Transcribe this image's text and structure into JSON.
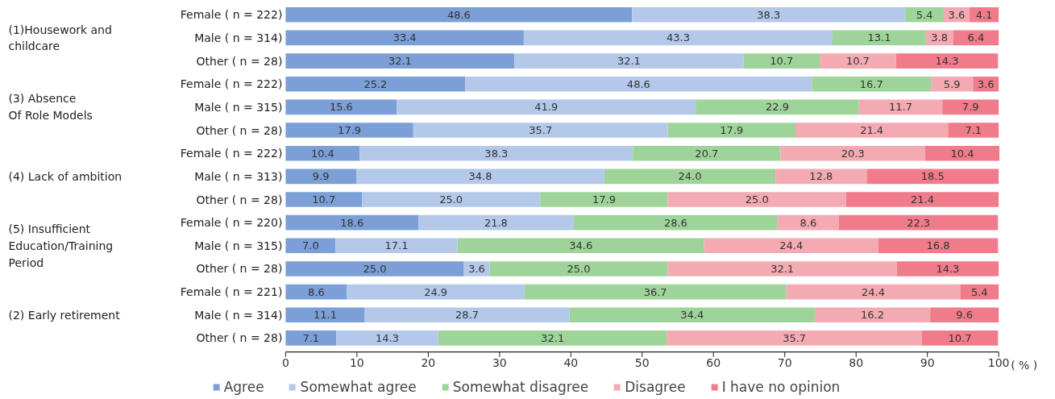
{
  "chart_data": {
    "type": "bar",
    "orientation": "horizontal",
    "stacked": true,
    "categories": [
      "Female ( n = 222)",
      "Male ( n = 314)",
      "Other ( n = 28)",
      "Female ( n = 222)",
      "Male ( n = 315)",
      "Other ( n = 28)",
      "Female ( n = 222)",
      "Male ( n = 313)",
      "Other ( n = 28)",
      "Female ( n = 220)",
      "Male ( n = 315)",
      "Other ( n = 28)",
      "Female ( n = 221)",
      "Male ( n = 314)",
      "Other ( n = 28)"
    ],
    "annotations": [
      "(1)Housework  and\n          childcare",
      "(3) Absence\n      Of Role Models",
      "(4) Lack of ambition",
      "(5) Insufficient\n     Education/Training\n     Period",
      "(2) Early retirement"
    ],
    "xlabel": "( % )",
    "xlim": [
      0,
      100
    ],
    "xticks": [
      0,
      10,
      20,
      30,
      40,
      50,
      60,
      70,
      80,
      90,
      100
    ],
    "grid": false,
    "legend": "bottom",
    "series": [
      {
        "name": "Agree",
        "color": "#7b9fd6",
        "values": [
          48.6,
          33.4,
          32.1,
          25.2,
          15.6,
          17.9,
          10.4,
          9.9,
          10.7,
          18.6,
          7.0,
          25.0,
          8.6,
          11.1,
          7.1
        ],
        "value_labels": [
          "48.6",
          "33.4",
          "32.1",
          "25.2",
          "15.6",
          "17.9",
          "10.4",
          "9.9",
          "10.7",
          "18.6",
          "7.0",
          "25.0",
          "8.6",
          "11.1",
          "7.1"
        ]
      },
      {
        "name": "Somewhat agree",
        "color": "#b4c8ea",
        "values": [
          38.3,
          43.3,
          32.1,
          48.6,
          41.9,
          35.7,
          38.3,
          34.8,
          25.0,
          21.8,
          17.1,
          3.6,
          24.9,
          28.7,
          14.3
        ],
        "value_labels": [
          "38.3",
          "43.3",
          "32.1",
          "48.6",
          "41.9",
          "35.7",
          "38.3",
          "34.8",
          "25.0",
          "21.8",
          "17.1",
          "3.6",
          "24.9",
          "28.7",
          "14.3"
        ]
      },
      {
        "name": "Somewhat disagree",
        "color": "#9ed49a",
        "values": [
          5.4,
          13.1,
          10.7,
          16.7,
          22.9,
          17.9,
          20.7,
          24.0,
          17.9,
          28.6,
          34.6,
          25.0,
          36.7,
          34.4,
          32.1
        ],
        "value_labels": [
          "5.4",
          "13.1",
          "10.7",
          "16.7",
          "22.9",
          "17.9",
          "20.7",
          "24.0",
          "17.9",
          "28.6",
          "34.6",
          "25.0",
          "36.7",
          "34.4",
          "32.1"
        ]
      },
      {
        "name": "Disagree",
        "color": "#f4aab3",
        "values": [
          3.6,
          3.8,
          10.7,
          5.9,
          11.7,
          21.4,
          20.3,
          12.8,
          25.0,
          8.6,
          24.4,
          32.1,
          24.4,
          16.2,
          35.7
        ],
        "value_labels": [
          "3.6",
          "3.8",
          "10.7",
          "5.9",
          "11.7",
          "21.4",
          "20.3",
          "12.8",
          "25.0",
          "8.6",
          "24.4",
          "32.1",
          "24.4",
          "16.2",
          "35.7"
        ]
      },
      {
        "name": "I have no opinion",
        "color": "#f07b8a",
        "values": [
          4.1,
          6.4,
          14.3,
          3.6,
          7.9,
          7.1,
          10.4,
          18.5,
          21.4,
          22.3,
          16.8,
          14.3,
          5.4,
          9.6,
          10.7
        ],
        "value_labels": [
          "4.1",
          "6.4",
          "14.3",
          "3.6",
          "7.9",
          "7.1",
          "10.4",
          "18.5",
          "21.4",
          "22.3",
          "16.8",
          "14.3",
          "5.4",
          "9.6",
          "10.7"
        ]
      }
    ]
  }
}
